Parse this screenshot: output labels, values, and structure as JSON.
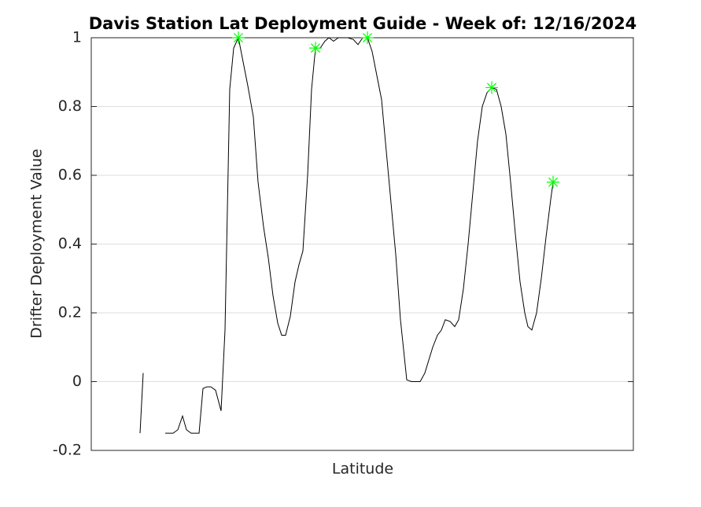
{
  "chart_data": {
    "type": "line",
    "title": "Davis Station Lat Deployment Guide - Week of: 12/16/2024",
    "xlabel": "Latitude",
    "ylabel": "Drifter Deployment Value",
    "xlim": [
      0,
      689
    ],
    "ylim": [
      -0.2,
      1
    ],
    "yticks": [
      -0.2,
      0,
      0.2,
      0.4,
      0.6,
      0.8,
      1
    ],
    "grid": true,
    "series": [
      {
        "color": "#000000",
        "marker": "none",
        "x": [
          62,
          66,
          null,
          94,
          104,
          110,
          116,
          121,
          127,
          137,
          142,
          147,
          152,
          158,
          165,
          170,
          176,
          181,
          187,
          193,
          199,
          206,
          212,
          219,
          225,
          231,
          237,
          242,
          247,
          253,
          259,
          264,
          269,
          275,
          280,
          285,
          291,
          297,
          302,
          308,
          314,
          320,
          326,
          333,
          339,
          345,
          351,
          357,
          363,
          369,
          375,
          381,
          387,
          393,
          401,
          407,
          412,
          418,
          424,
          430,
          434,
          440,
          445,
          450,
          456,
          462,
          467,
          473,
          479,
          485,
          491,
          497,
          503,
          509,
          515,
          521,
          527,
          533,
          539,
          545,
          551,
          555,
          560,
          566,
          572,
          578,
          584,
          587
        ],
        "values": [
          -0.15,
          0.025,
          null,
          -0.15,
          -0.15,
          -0.14,
          -0.1,
          -0.14,
          -0.15,
          -0.15,
          -0.02,
          -0.015,
          -0.015,
          -0.025,
          -0.085,
          0.15,
          0.85,
          0.97,
          1.0,
          0.93,
          0.86,
          0.77,
          0.58,
          0.45,
          0.36,
          0.25,
          0.17,
          0.135,
          0.135,
          0.19,
          0.29,
          0.34,
          0.38,
          0.6,
          0.85,
          0.97,
          0.97,
          0.99,
          1.0,
          0.99,
          1.0,
          1.0,
          1.0,
          0.995,
          0.98,
          1.0,
          1.0,
          0.96,
          0.89,
          0.82,
          0.67,
          0.52,
          0.37,
          0.18,
          0.005,
          0.0,
          0.0,
          0.0,
          0.025,
          0.07,
          0.1,
          0.135,
          0.15,
          0.18,
          0.175,
          0.16,
          0.18,
          0.27,
          0.4,
          0.55,
          0.7,
          0.8,
          0.84,
          0.855,
          0.85,
          0.8,
          0.72,
          0.58,
          0.43,
          0.29,
          0.2,
          0.16,
          0.15,
          0.2,
          0.3,
          0.42,
          0.53,
          0.58
        ]
      },
      {
        "color": "#00ff00",
        "marker": "star",
        "x": [
          187,
          285,
          351,
          509,
          587
        ],
        "values": [
          1.0,
          0.97,
          1.0,
          0.855,
          0.58
        ]
      }
    ]
  }
}
